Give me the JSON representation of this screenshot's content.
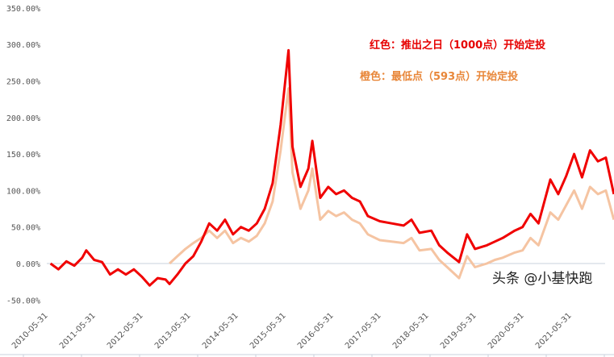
{
  "chart_data": {
    "type": "line",
    "ylim": [
      -50,
      350
    ],
    "yticks": [
      "350.00%",
      "300.00%",
      "250.00%",
      "200.00%",
      "150.00%",
      "100.00%",
      "50.00%",
      "0.00%",
      "-50.00%"
    ],
    "ytick_values": [
      350,
      300,
      250,
      200,
      150,
      100,
      50,
      0,
      -50
    ],
    "xticks": [
      "2010-05-31",
      "2011-05-31",
      "2012-05-31",
      "2013-05-31",
      "2014-05-31",
      "2015-05-31",
      "2016-05-31",
      "2017-05-31",
      "2018-05-31",
      "2019-05-31",
      "2020-05-31",
      "2021-05-31"
    ],
    "grid": false,
    "annotations": [
      {
        "text": "红色：推出之日（1000点）开始定投",
        "color": "#e60000"
      },
      {
        "text": "橙色：最低点（593点）开始定投",
        "color": "#e8873a"
      }
    ],
    "series": [
      {
        "color": "#f00000",
        "x": [
          "2010-06",
          "2010-08",
          "2010-10",
          "2010-12",
          "2011-02",
          "2011-03",
          "2011-05",
          "2011-07",
          "2011-09",
          "2011-11",
          "2012-01",
          "2012-03",
          "2012-05",
          "2012-07",
          "2012-09",
          "2012-11",
          "2012-12",
          "2013-02",
          "2013-04",
          "2013-06",
          "2013-08",
          "2013-10",
          "2013-12",
          "2014-02",
          "2014-04",
          "2014-06",
          "2014-08",
          "2014-10",
          "2014-12",
          "2015-02",
          "2015-04",
          "2015-06",
          "2015-07",
          "2015-09",
          "2015-11",
          "2015-12",
          "2016-02",
          "2016-04",
          "2016-06",
          "2016-08",
          "2016-10",
          "2016-12",
          "2017-02",
          "2017-05",
          "2017-08",
          "2017-11",
          "2018-01",
          "2018-03",
          "2018-06",
          "2018-08",
          "2018-10",
          "2019-01",
          "2019-03",
          "2019-05",
          "2019-08",
          "2019-10",
          "2019-12",
          "2020-03",
          "2020-05",
          "2020-07",
          "2020-09",
          "2020-12",
          "2021-02",
          "2021-04",
          "2021-06",
          "2021-08",
          "2021-10",
          "2021-12",
          "2022-02",
          "2022-03",
          "2022-04"
        ],
        "values": [
          0,
          -8,
          3,
          -3,
          8,
          18,
          5,
          2,
          -15,
          -8,
          -15,
          -8,
          -18,
          -30,
          -20,
          -22,
          -28,
          -15,
          0,
          10,
          30,
          55,
          45,
          60,
          40,
          50,
          45,
          55,
          75,
          110,
          190,
          292,
          160,
          105,
          130,
          168,
          90,
          105,
          95,
          100,
          90,
          85,
          65,
          58,
          55,
          52,
          60,
          42,
          45,
          25,
          15,
          2,
          40,
          20,
          25,
          30,
          35,
          45,
          50,
          68,
          55,
          115,
          95,
          120,
          150,
          118,
          155,
          140,
          145,
          120,
          95
        ]
      },
      {
        "color": "#f5c4a2",
        "x": [
          "2012-12",
          "2013-02",
          "2013-04",
          "2013-06",
          "2013-08",
          "2013-10",
          "2013-12",
          "2014-02",
          "2014-04",
          "2014-06",
          "2014-08",
          "2014-10",
          "2014-12",
          "2015-02",
          "2015-04",
          "2015-06",
          "2015-07",
          "2015-09",
          "2015-11",
          "2015-12",
          "2016-02",
          "2016-04",
          "2016-06",
          "2016-08",
          "2016-10",
          "2016-12",
          "2017-02",
          "2017-05",
          "2017-08",
          "2017-11",
          "2018-01",
          "2018-03",
          "2018-06",
          "2018-08",
          "2018-10",
          "2019-01",
          "2019-03",
          "2019-05",
          "2019-08",
          "2019-10",
          "2019-12",
          "2020-03",
          "2020-05",
          "2020-07",
          "2020-09",
          "2020-12",
          "2021-02",
          "2021-04",
          "2021-06",
          "2021-08",
          "2021-10",
          "2021-12",
          "2022-02",
          "2022-03",
          "2022-04"
        ],
        "values": [
          0,
          10,
          20,
          28,
          35,
          45,
          35,
          45,
          28,
          35,
          30,
          38,
          55,
          85,
          155,
          240,
          125,
          75,
          100,
          130,
          60,
          72,
          65,
          70,
          60,
          55,
          40,
          32,
          30,
          28,
          35,
          18,
          20,
          5,
          -5,
          -20,
          10,
          -5,
          0,
          5,
          8,
          15,
          18,
          35,
          25,
          70,
          60,
          80,
          100,
          75,
          105,
          95,
          100,
          80,
          60
        ]
      }
    ]
  },
  "watermark": "头条 @小基快跑"
}
